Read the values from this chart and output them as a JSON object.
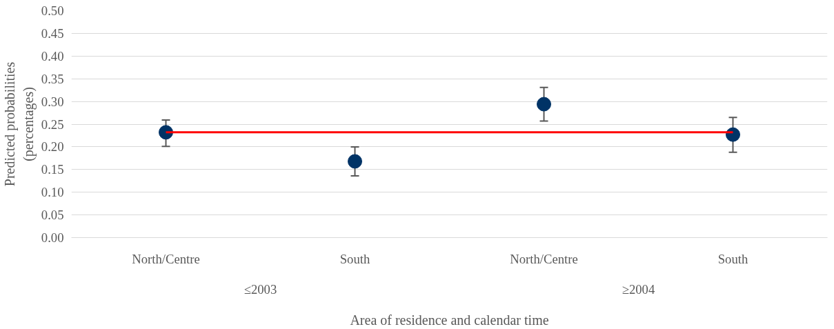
{
  "chart_data": {
    "type": "scatter",
    "xlabel": "Area of residence and calendar time",
    "ylabel": "Predicted probabilities\n(percentages)",
    "categories": [
      "North/Centre",
      "South",
      "North/Centre",
      "South"
    ],
    "annotations": [
      "≤2003",
      "≥2004"
    ],
    "series": [
      {
        "color": "#003366",
        "values": [
          0.232,
          0.168,
          0.294,
          0.227
        ],
        "errors": [
          [
            0.201,
            0.259
          ],
          [
            0.136,
            0.2
          ],
          [
            0.257,
            0.331
          ],
          [
            0.188,
            0.265
          ]
        ]
      },
      {
        "type": "line",
        "color": "#ff0000",
        "marker": "none",
        "values": [
          0.232,
          0.232,
          0.232,
          0.232
        ]
      }
    ],
    "ylim": [
      0,
      0.5
    ],
    "yticks": [
      {
        "value": 0,
        "label": "0.00"
      },
      {
        "value": 0.05,
        "label": "0.05"
      },
      {
        "value": 0.1,
        "label": "0.10"
      },
      {
        "value": 0.15,
        "label": "0.15"
      },
      {
        "value": 0.2,
        "label": "0.20"
      },
      {
        "value": 0.25,
        "label": "0.25"
      },
      {
        "value": 0.3,
        "label": "0.30"
      },
      {
        "value": 0.35,
        "label": "0.35"
      },
      {
        "value": 0.4,
        "label": "0.40"
      },
      {
        "value": 0.45,
        "label": "0.45"
      },
      {
        "value": 0.5,
        "label": "0.50"
      }
    ],
    "grid": "y",
    "marker": "circle"
  }
}
